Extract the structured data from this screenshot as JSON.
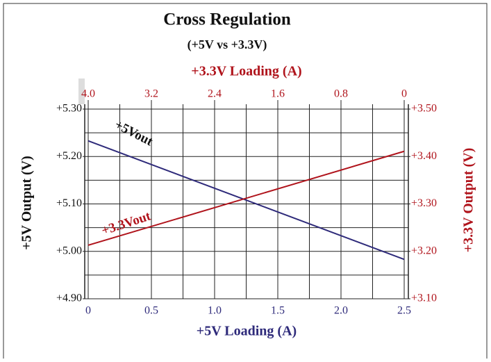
{
  "chart_data": {
    "type": "line",
    "title": "Cross Regulation",
    "subtitle": "(+5V vs +3.3V)",
    "x_label": "+5V Loading (A)",
    "x2_label": "+3.3V Loading (A)",
    "y_label": "+5V Output (V)",
    "y2_label": "+3.3V Output (V)",
    "x": [
      0,
      2.5
    ],
    "series": [
      {
        "name": "+5Vout",
        "color": "#2e2a7a",
        "values": [
          5.233,
          4.983
        ]
      },
      {
        "name": "+3.3Vout",
        "color": "#b0141c",
        "axis": "y2",
        "values": [
          3.213,
          3.411
        ]
      }
    ],
    "xlim": [
      0,
      2.5
    ],
    "xticks": [
      0,
      {
        "value": 0.5,
        "label": "0.5"
      },
      {
        "value": 1,
        "label": "1.0"
      },
      {
        "value": 1.5,
        "label": "1.5"
      },
      {
        "value": 2,
        "label": "2.0"
      },
      {
        "value": 2.5,
        "label": "2.5"
      }
    ],
    "x2lim": [
      4,
      0
    ],
    "x2ticks": [
      {
        "value": 4,
        "label": "4.0"
      },
      {
        "value": 3.2,
        "label": "3.2"
      },
      {
        "value": 2.4,
        "label": "2.4"
      },
      {
        "value": 1.6,
        "label": "1.6"
      },
      {
        "value": 0.8,
        "label": "0.8"
      },
      0
    ],
    "ylim": [
      4.9,
      5.3
    ],
    "yticks": [
      {
        "value": 4.9,
        "label": "+4.90"
      },
      {
        "value": 5.0,
        "label": "+5.00"
      },
      {
        "value": 5.1,
        "label": "+5.10"
      },
      {
        "value": 5.2,
        "label": "+5.20"
      },
      {
        "value": 5.3,
        "label": "+5.30"
      }
    ],
    "y2lim": [
      3.1,
      3.5
    ],
    "y2ticks": [
      {
        "value": 3.1,
        "label": "+3.10"
      },
      {
        "value": 3.2,
        "label": "+3.20"
      },
      {
        "value": 3.3,
        "label": "+3.30"
      },
      {
        "value": 3.4,
        "label": "+3.40"
      },
      {
        "value": 3.5,
        "label": "+3.50"
      }
    ],
    "xgrid": [
      0,
      0.25,
      0.5,
      0.75,
      1,
      1.25,
      1.5,
      1.75,
      2,
      2.25,
      2.5
    ],
    "ygrid": [
      4.9,
      4.95,
      5.0,
      5.05,
      5.1,
      5.15,
      5.2,
      5.25,
      5.3
    ],
    "grid": true
  }
}
